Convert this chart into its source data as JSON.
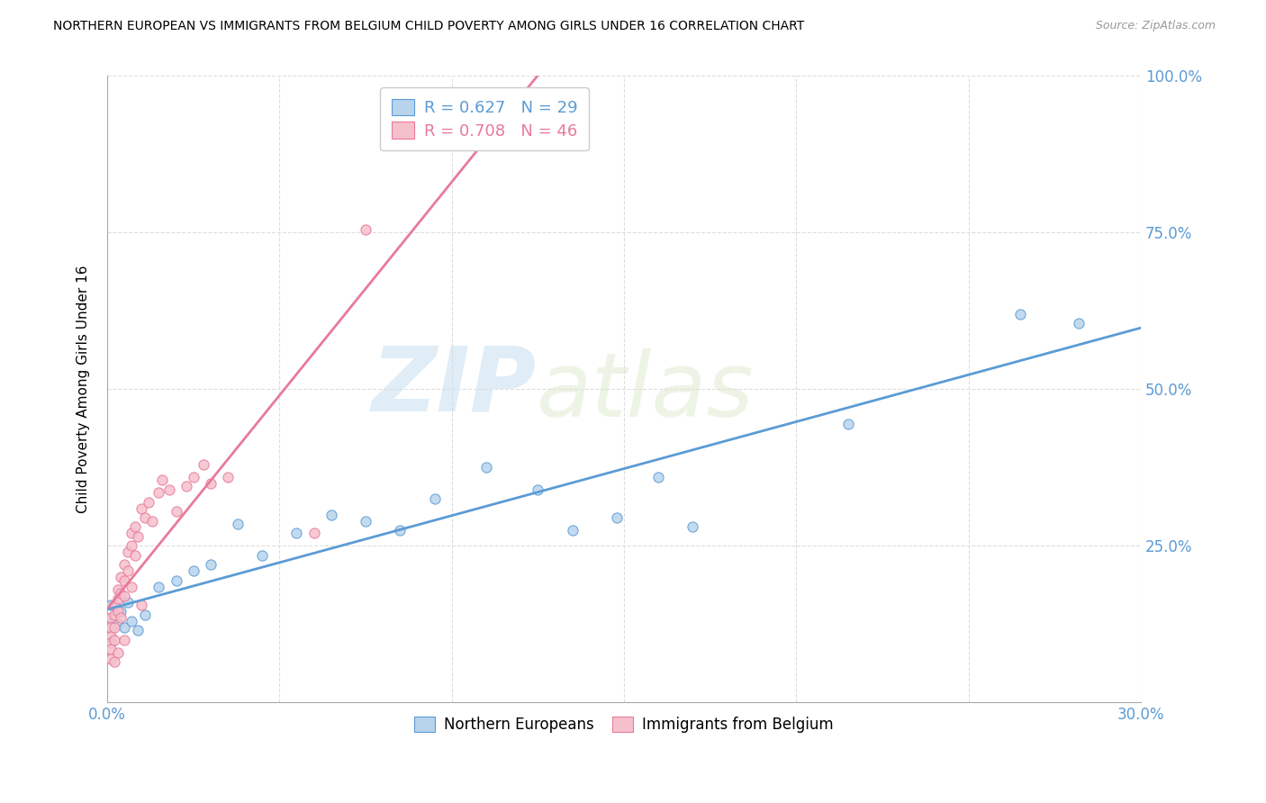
{
  "title": "NORTHERN EUROPEAN VS IMMIGRANTS FROM BELGIUM CHILD POVERTY AMONG GIRLS UNDER 16 CORRELATION CHART",
  "source": "Source: ZipAtlas.com",
  "ylabel": "Child Poverty Among Girls Under 16",
  "xlim": [
    0.0,
    0.3
  ],
  "ylim": [
    0.0,
    1.0
  ],
  "xticks": [
    0.0,
    0.05,
    0.1,
    0.15,
    0.2,
    0.25,
    0.3
  ],
  "yticks": [
    0.0,
    0.25,
    0.5,
    0.75,
    1.0
  ],
  "blue_color": "#b8d4ed",
  "blue_line_color": "#5b9bd5",
  "pink_color": "#f5c0cc",
  "pink_line_color": "#e87a9a",
  "legend_label1": "Northern Europeans",
  "legend_label2": "Immigrants from Belgium",
  "watermark_zip": "ZIP",
  "watermark_atlas": "atlas",
  "background_color": "#ffffff",
  "grid_color": "#dddddd",
  "blue_x": [
    0.001,
    0.002,
    0.003,
    0.004,
    0.005,
    0.006,
    0.007,
    0.009,
    0.011,
    0.015,
    0.02,
    0.025,
    0.03,
    0.038,
    0.045,
    0.055,
    0.065,
    0.075,
    0.085,
    0.095,
    0.11,
    0.125,
    0.135,
    0.148,
    0.16,
    0.17,
    0.215,
    0.265,
    0.282
  ],
  "blue_y": [
    0.155,
    0.135,
    0.125,
    0.145,
    0.12,
    0.16,
    0.13,
    0.115,
    0.14,
    0.185,
    0.195,
    0.21,
    0.22,
    0.285,
    0.235,
    0.27,
    0.3,
    0.29,
    0.275,
    0.325,
    0.375,
    0.34,
    0.275,
    0.295,
    0.36,
    0.28,
    0.445,
    0.62,
    0.605
  ],
  "pink_x": [
    0.001,
    0.001,
    0.001,
    0.001,
    0.001,
    0.001,
    0.002,
    0.002,
    0.002,
    0.002,
    0.002,
    0.003,
    0.003,
    0.003,
    0.003,
    0.004,
    0.004,
    0.004,
    0.005,
    0.005,
    0.005,
    0.005,
    0.006,
    0.006,
    0.007,
    0.007,
    0.007,
    0.008,
    0.008,
    0.009,
    0.01,
    0.01,
    0.011,
    0.012,
    0.013,
    0.015,
    0.016,
    0.018,
    0.02,
    0.023,
    0.025,
    0.028,
    0.03,
    0.035,
    0.06,
    0.075
  ],
  "pink_y": [
    0.135,
    0.12,
    0.105,
    0.095,
    0.085,
    0.07,
    0.155,
    0.14,
    0.12,
    0.1,
    0.065,
    0.18,
    0.165,
    0.145,
    0.08,
    0.2,
    0.175,
    0.135,
    0.22,
    0.195,
    0.17,
    0.1,
    0.24,
    0.21,
    0.27,
    0.25,
    0.185,
    0.28,
    0.235,
    0.265,
    0.31,
    0.155,
    0.295,
    0.32,
    0.29,
    0.335,
    0.355,
    0.34,
    0.305,
    0.345,
    0.36,
    0.38,
    0.35,
    0.36,
    0.27,
    0.755
  ]
}
